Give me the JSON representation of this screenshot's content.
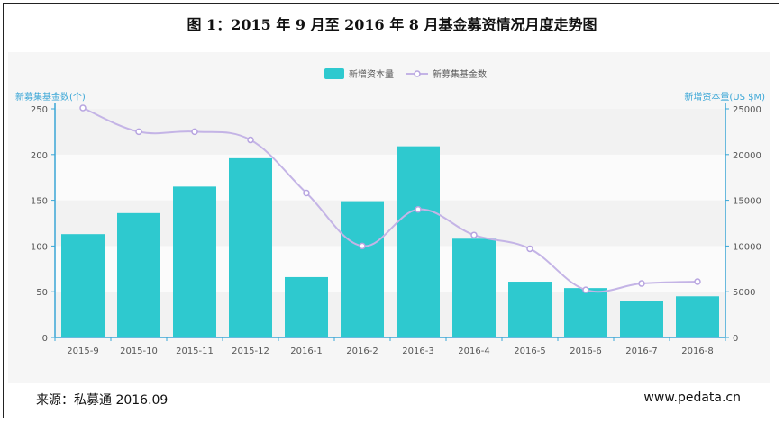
{
  "header": {
    "title": "图 1：2015 年 9 月至 2016 年 8 月基金募资情况月度走势图"
  },
  "footer": {
    "source": "来源：私募通  2016.09",
    "site": "www.pedata.cn"
  },
  "colors": {
    "bar": "#2ec9cf",
    "line": "#c4b4e6",
    "axis": "#3aa6d6",
    "text": "#555555"
  },
  "chart_data": {
    "type": "bar",
    "categories": [
      "2015-9",
      "2015-10",
      "2015-11",
      "2015-12",
      "2016-1",
      "2016-2",
      "2016-3",
      "2016-4",
      "2016-5",
      "2016-6",
      "2016-7",
      "2016-8"
    ],
    "series": [
      {
        "name": "新增资本量",
        "type": "bar",
        "axis": "right",
        "values": [
          11300,
          13600,
          16500,
          19600,
          6600,
          14900,
          20900,
          10800,
          6100,
          5400,
          4000,
          4500
        ]
      },
      {
        "name": "新募集基金数",
        "type": "line",
        "axis": "left",
        "values": [
          251,
          225,
          225,
          216,
          158,
          100,
          140,
          112,
          97,
          52,
          59,
          61
        ]
      }
    ],
    "ylabel_left": "新募集基金数(个)",
    "ylabel_right": "新增资本量(US $M)",
    "ylim_left": [
      0,
      250
    ],
    "ylim_right": [
      0,
      25000
    ],
    "yticks_left": [
      "0",
      "50",
      "100",
      "150",
      "200",
      "250"
    ],
    "yticks_right": [
      "0",
      "5000",
      "10000",
      "15000",
      "20000",
      "25000"
    ],
    "legend_position": "top-center"
  }
}
